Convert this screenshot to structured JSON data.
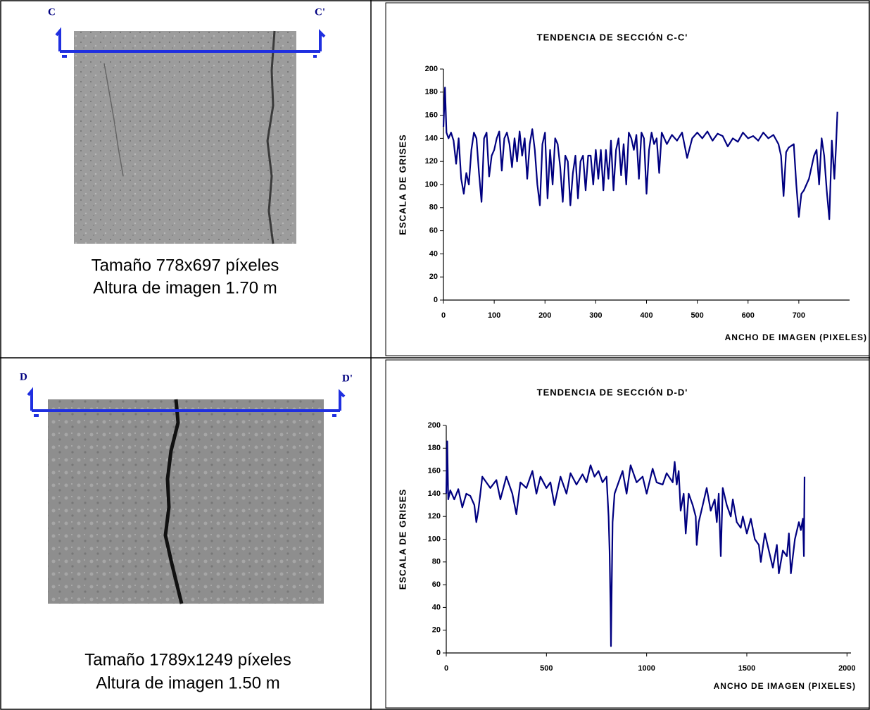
{
  "chart_data": [
    {
      "type": "line",
      "title": "TENDENCIA DE SECCIÓN C-C'",
      "x_label": "ANCHO DE IMAGEN (PIXELES)",
      "y_label": "ESCALA DE GRISES",
      "xlim": [
        0,
        800
      ],
      "xticks": [
        0,
        100,
        200,
        300,
        400,
        500,
        600,
        700
      ],
      "ylim": [
        0,
        200
      ],
      "yticks": [
        0,
        20,
        40,
        60,
        80,
        100,
        120,
        140,
        160,
        180,
        200
      ],
      "color": "#000080",
      "x": [
        0,
        3,
        6,
        10,
        15,
        20,
        25,
        30,
        35,
        40,
        45,
        50,
        55,
        60,
        65,
        70,
        75,
        80,
        85,
        90,
        95,
        100,
        105,
        110,
        115,
        120,
        125,
        130,
        135,
        140,
        145,
        150,
        155,
        160,
        165,
        170,
        175,
        180,
        185,
        190,
        195,
        200,
        205,
        210,
        215,
        220,
        225,
        230,
        235,
        240,
        245,
        250,
        255,
        260,
        265,
        270,
        275,
        280,
        285,
        290,
        295,
        300,
        305,
        310,
        315,
        320,
        325,
        330,
        335,
        340,
        345,
        350,
        355,
        360,
        365,
        370,
        375,
        380,
        385,
        390,
        395,
        400,
        405,
        410,
        415,
        420,
        425,
        430,
        440,
        450,
        460,
        470,
        480,
        490,
        500,
        510,
        520,
        530,
        540,
        550,
        560,
        570,
        580,
        590,
        600,
        610,
        620,
        630,
        640,
        650,
        660,
        665,
        670,
        675,
        680,
        690,
        695,
        700,
        705,
        710,
        720,
        730,
        735,
        740,
        745,
        750,
        755,
        760,
        765,
        770,
        773,
        776
      ],
      "values": [
        150,
        184,
        145,
        140,
        145,
        138,
        118,
        140,
        105,
        92,
        110,
        100,
        130,
        145,
        140,
        110,
        85,
        140,
        145,
        107,
        125,
        130,
        140,
        146,
        112,
        140,
        145,
        135,
        115,
        140,
        120,
        146,
        125,
        140,
        105,
        135,
        148,
        130,
        100,
        82,
        135,
        145,
        88,
        130,
        100,
        140,
        135,
        115,
        85,
        125,
        120,
        82,
        110,
        125,
        88,
        120,
        125,
        95,
        125,
        125,
        100,
        130,
        105,
        130,
        95,
        130,
        105,
        138,
        95,
        130,
        140,
        108,
        135,
        100,
        145,
        140,
        130,
        143,
        105,
        145,
        140,
        92,
        130,
        145,
        135,
        140,
        110,
        145,
        135,
        143,
        138,
        145,
        123,
        140,
        145,
        140,
        146,
        138,
        144,
        142,
        133,
        140,
        137,
        145,
        140,
        142,
        138,
        145,
        140,
        143,
        135,
        125,
        90,
        128,
        132,
        135,
        100,
        72,
        92,
        95,
        105,
        125,
        130,
        100,
        140,
        125,
        95,
        70,
        138,
        105,
        130,
        163
      ]
    },
    {
      "type": "line",
      "title": "TENDENCIA DE SECCIÓN D-D'",
      "x_label": "ANCHO DE IMAGEN (PIXELES)",
      "y_label": "ESCALA DE GRISES",
      "xlim": [
        0,
        2020
      ],
      "xticks": [
        0,
        500,
        1000,
        1500,
        2000
      ],
      "ylim": [
        0,
        200
      ],
      "yticks": [
        0,
        20,
        40,
        60,
        80,
        100,
        120,
        140,
        160,
        180,
        200
      ],
      "color": "#000080",
      "x": [
        0,
        5,
        10,
        20,
        40,
        60,
        80,
        100,
        120,
        140,
        150,
        160,
        170,
        180,
        200,
        220,
        250,
        270,
        300,
        330,
        350,
        370,
        400,
        430,
        450,
        470,
        500,
        520,
        540,
        570,
        600,
        620,
        650,
        680,
        700,
        720,
        740,
        760,
        780,
        800,
        810,
        815,
        820,
        822,
        826,
        830,
        840,
        860,
        880,
        900,
        920,
        950,
        980,
        1000,
        1030,
        1050,
        1080,
        1100,
        1130,
        1140,
        1150,
        1160,
        1170,
        1185,
        1195,
        1210,
        1230,
        1245,
        1250,
        1260,
        1280,
        1300,
        1320,
        1340,
        1350,
        1360,
        1370,
        1380,
        1400,
        1420,
        1430,
        1450,
        1470,
        1480,
        1500,
        1520,
        1540,
        1560,
        1570,
        1590,
        1610,
        1630,
        1650,
        1660,
        1680,
        1700,
        1710,
        1720,
        1740,
        1760,
        1770,
        1780,
        1785,
        1788
      ],
      "values": [
        140,
        186,
        135,
        143,
        135,
        144,
        128,
        140,
        138,
        130,
        115,
        125,
        140,
        155,
        150,
        145,
        152,
        135,
        155,
        140,
        122,
        150,
        145,
        160,
        140,
        155,
        145,
        150,
        130,
        155,
        140,
        158,
        148,
        157,
        150,
        165,
        155,
        160,
        150,
        155,
        120,
        90,
        40,
        6,
        60,
        115,
        140,
        150,
        160,
        140,
        165,
        150,
        155,
        140,
        162,
        150,
        148,
        158,
        150,
        168,
        148,
        160,
        125,
        140,
        105,
        140,
        130,
        120,
        95,
        115,
        130,
        145,
        125,
        135,
        115,
        140,
        85,
        145,
        130,
        120,
        135,
        115,
        110,
        120,
        105,
        118,
        100,
        95,
        80,
        105,
        90,
        75,
        95,
        70,
        90,
        85,
        105,
        70,
        100,
        115,
        108,
        118,
        85,
        155
      ]
    }
  ],
  "images": [
    {
      "left_mark": "C",
      "right_mark": "C'",
      "caption": [
        "Tamaño 778x697 píxeles",
        "Altura de imagen 1.70 m"
      ]
    },
    {
      "left_mark": "D",
      "right_mark": "D'",
      "caption": [
        "Tamaño 1789x1249 píxeles",
        "Altura de imagen 1.50 m"
      ]
    }
  ]
}
